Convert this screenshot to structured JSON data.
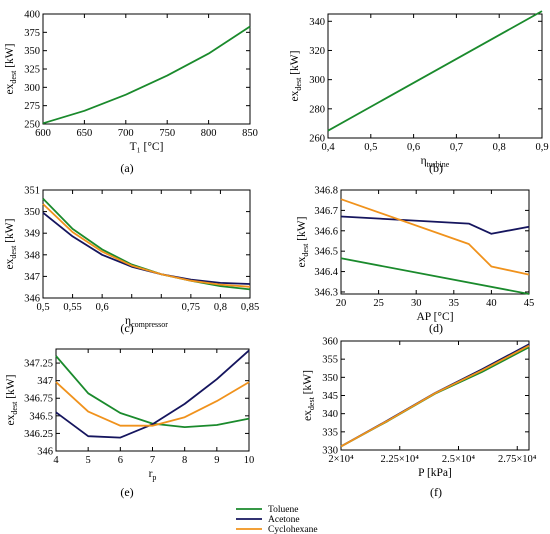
{
  "colors": {
    "Toluene": "#1a8a2c",
    "Acetone": "#15155e",
    "Cyclohexane": "#f0921c"
  },
  "legend": {
    "items": [
      "Toluene",
      "Acetone",
      "Cyclohexane"
    ]
  },
  "chart_data": [
    {
      "type": "line",
      "panel_label": "(a)",
      "xlabel": "T₁ [°C]",
      "ylabel": "ex_dest [kW]",
      "xlim": [
        600,
        850
      ],
      "ylim": [
        250,
        400
      ],
      "xticks": [
        600,
        650,
        700,
        750,
        800,
        850
      ],
      "xtick_labels": [
        "600",
        "650",
        "700",
        "750",
        "800",
        "850"
      ],
      "yticks": [
        250,
        275,
        300,
        325,
        350,
        375,
        400
      ],
      "ytick_labels": [
        "250",
        "275",
        "300",
        "325",
        "350",
        "375",
        "400"
      ],
      "series": [
        {
          "name": "Toluene",
          "x": [
            600,
            650,
            700,
            750,
            800,
            850
          ],
          "y": [
            251,
            268,
            290,
            316,
            346,
            383
          ]
        }
      ]
    },
    {
      "type": "line",
      "panel_label": "(b)",
      "xlabel": "η_turbine",
      "ylabel": "ex_dest [kW]",
      "xlim": [
        0.4,
        0.9
      ],
      "ylim": [
        260,
        345
      ],
      "xticks": [
        0.4,
        0.5,
        0.6,
        0.7,
        0.8,
        0.9
      ],
      "xtick_labels": [
        "0,4",
        "0,5",
        "0,6",
        "0,7",
        "0,8",
        "0,9"
      ],
      "yticks": [
        260,
        280,
        300,
        320,
        340
      ],
      "ytick_labels": [
        "260",
        "280",
        "300",
        "320",
        "340"
      ],
      "series": [
        {
          "name": "Toluene",
          "x": [
            0.4,
            0.9
          ],
          "y": [
            265,
            347
          ]
        }
      ]
    },
    {
      "type": "line",
      "panel_label": "(c)",
      "xlabel": "η_compressor",
      "ylabel": "ex_dest [kW]",
      "xlim": [
        0.5,
        0.85
      ],
      "ylim": [
        346,
        351
      ],
      "xticks": [
        0.5,
        0.55,
        0.6,
        0.65,
        0.7,
        0.75,
        0.8,
        0.85
      ],
      "xtick_labels": [
        "0,5",
        "0,55",
        "0,6",
        "",
        "",
        "0,75",
        "0,8",
        "0,85"
      ],
      "yticks": [
        346,
        347,
        348,
        349,
        350,
        351
      ],
      "ytick_labels": [
        "346",
        "347",
        "348",
        "349",
        "350",
        "351"
      ],
      "series": [
        {
          "name": "Toluene",
          "x": [
            0.5,
            0.55,
            0.6,
            0.65,
            0.7,
            0.75,
            0.8,
            0.85
          ],
          "y": [
            350.6,
            349.2,
            348.25,
            347.55,
            347.1,
            346.8,
            346.55,
            346.4
          ]
        },
        {
          "name": "Acetone",
          "x": [
            0.5,
            0.55,
            0.6,
            0.65,
            0.7,
            0.75,
            0.8,
            0.85
          ],
          "y": [
            349.95,
            348.85,
            348.0,
            347.45,
            347.1,
            346.85,
            346.7,
            346.65
          ]
        },
        {
          "name": "Cyclohexane",
          "x": [
            0.5,
            0.55,
            0.6,
            0.65,
            0.7,
            0.75,
            0.8,
            0.85
          ],
          "y": [
            350.35,
            349.05,
            348.15,
            347.5,
            347.1,
            346.8,
            346.62,
            346.52
          ]
        }
      ]
    },
    {
      "type": "line",
      "panel_label": "(d)",
      "xlabel": "AP [°C]",
      "ylabel": "ex_dest [kW]",
      "xlim": [
        20,
        45
      ],
      "ylim": [
        346.29,
        346.8
      ],
      "xticks": [
        20,
        25,
        30,
        35,
        40,
        45
      ],
      "xtick_labels": [
        "20",
        "25",
        "30",
        "35",
        "40",
        "45"
      ],
      "yticks": [
        346.3,
        346.4,
        346.5,
        346.6,
        346.7,
        346.8
      ],
      "ytick_labels": [
        "346.3",
        "346.4",
        "346.5",
        "346.6",
        "346.7",
        "346.8"
      ],
      "series": [
        {
          "name": "Toluene",
          "x": [
            20,
            45
          ],
          "y": [
            346.465,
            346.29
          ]
        },
        {
          "name": "Acetone",
          "x": [
            20,
            37,
            40,
            45
          ],
          "y": [
            346.67,
            346.635,
            346.585,
            346.62
          ]
        },
        {
          "name": "Cyclohexane",
          "x": [
            20,
            37,
            40,
            45
          ],
          "y": [
            346.755,
            346.535,
            346.425,
            346.385
          ]
        }
      ]
    },
    {
      "type": "line",
      "panel_label": "(e)",
      "xlabel": "r_p",
      "ylabel": "ex_dest [kW]",
      "xlim": [
        4,
        10
      ],
      "ylim": [
        346,
        347.45
      ],
      "xticks": [
        4,
        5,
        6,
        7,
        8,
        9,
        10
      ],
      "xtick_labels": [
        "4",
        "5",
        "6",
        "7",
        "8",
        "9",
        "10"
      ],
      "yticks": [
        346,
        346.25,
        346.5,
        346.75,
        347,
        347.25
      ],
      "ytick_labels": [
        "346",
        "346.25",
        "346.5",
        "346.75",
        "347",
        "347.25"
      ],
      "series": [
        {
          "name": "Toluene",
          "x": [
            4,
            5,
            6,
            7,
            8,
            9,
            10
          ],
          "y": [
            347.35,
            346.82,
            346.54,
            346.39,
            346.34,
            346.37,
            346.46
          ]
        },
        {
          "name": "Acetone",
          "x": [
            4,
            5,
            6,
            7,
            8,
            9,
            10
          ],
          "y": [
            346.55,
            346.21,
            346.19,
            346.38,
            346.67,
            347.02,
            347.43
          ]
        },
        {
          "name": "Cyclohexane",
          "x": [
            4,
            5,
            6,
            7,
            8,
            9,
            10
          ],
          "y": [
            346.98,
            346.56,
            346.36,
            346.36,
            346.48,
            346.71,
            346.98
          ]
        }
      ]
    },
    {
      "type": "line",
      "panel_label": "(f)",
      "xlabel": "P [kPa]",
      "ylabel": "ex_dest [kW]",
      "xlim": [
        20000,
        28000
      ],
      "ylim": [
        330,
        360
      ],
      "xticks": [
        20000,
        22500,
        25000,
        27500
      ],
      "xtick_labels": [
        "2×10⁴",
        "2.25×10⁴",
        "2.5×10⁴",
        "2.75×10⁴"
      ],
      "yticks": [
        330,
        335,
        340,
        345,
        350,
        355,
        360
      ],
      "ytick_labels": [
        "330",
        "335",
        "340",
        "345",
        "350",
        "355",
        "360"
      ],
      "series": [
        {
          "name": "Toluene",
          "x": [
            20000,
            22000,
            24000,
            26000,
            28000
          ],
          "y": [
            331,
            338,
            345.5,
            351.5,
            358.3
          ]
        },
        {
          "name": "Acetone",
          "x": [
            20000,
            22000,
            24000,
            26000,
            28000
          ],
          "y": [
            331,
            338.2,
            345.7,
            352.2,
            359.1
          ]
        },
        {
          "name": "Cyclohexane",
          "x": [
            20000,
            22000,
            24000,
            26000,
            28000
          ],
          "y": [
            331,
            338.1,
            345.6,
            351.9,
            358.7
          ]
        }
      ]
    }
  ]
}
